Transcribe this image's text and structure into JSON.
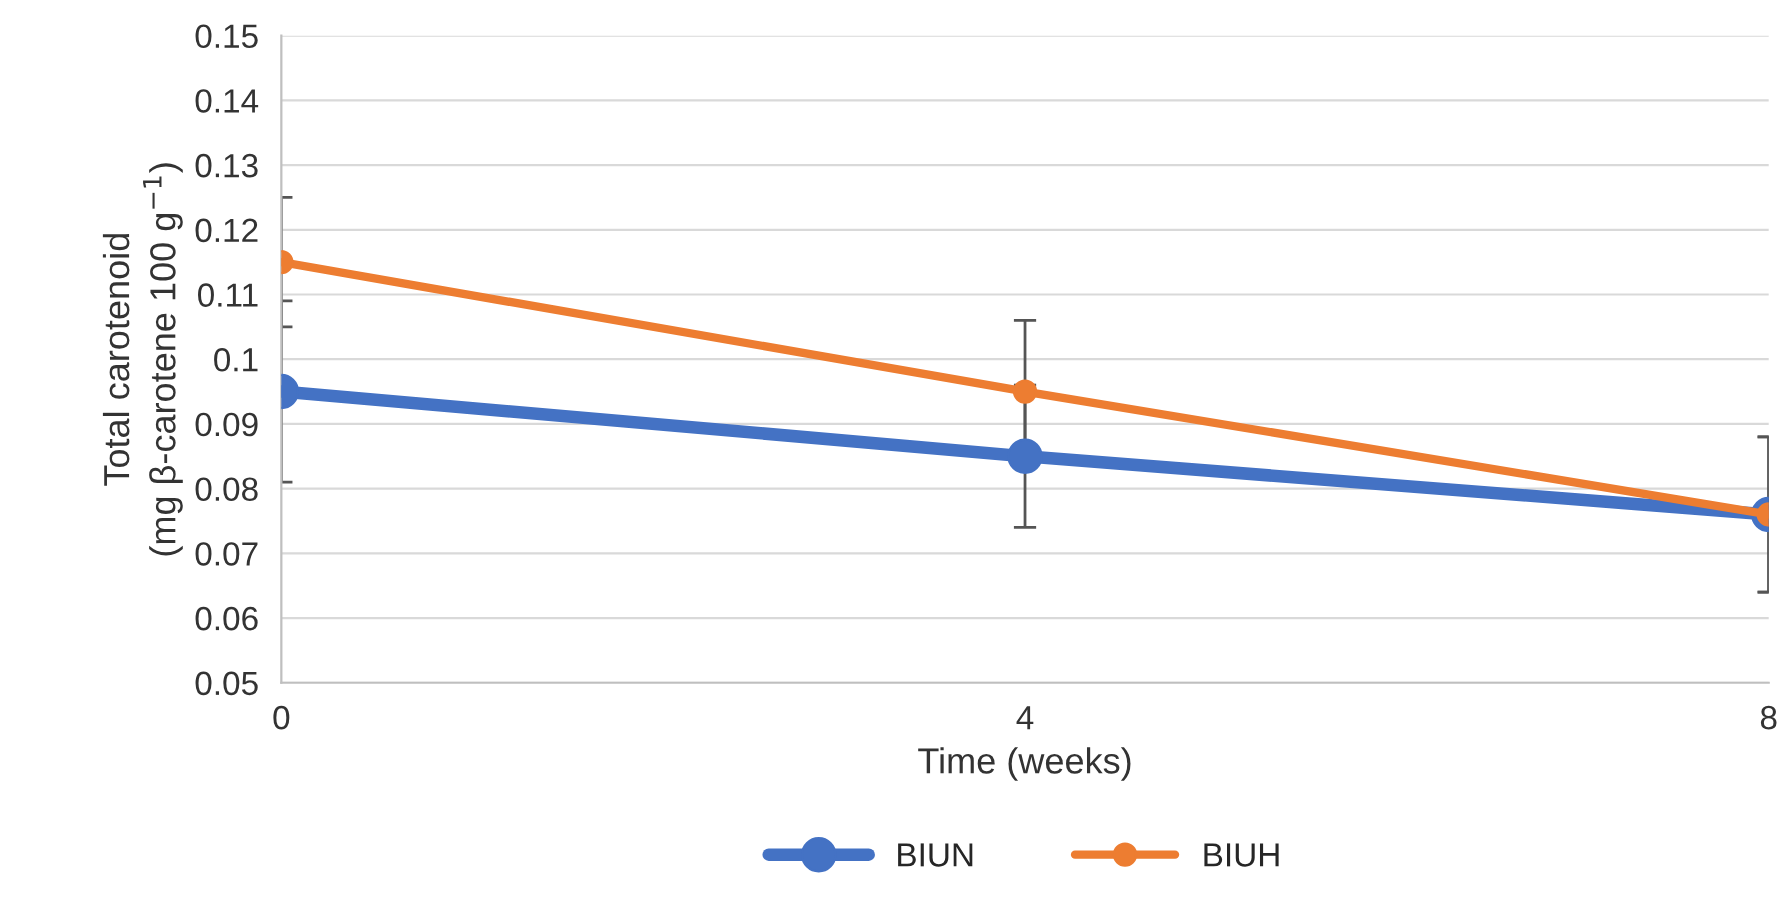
{
  "chart_data": {
    "type": "line",
    "xlabel": "Time (weeks)",
    "ylabel": "Total carotenoid\n(mg β-carotene 100 g$^{−1}$)",
    "x": [
      0,
      4,
      8
    ],
    "series": [
      {
        "name": "BIUN",
        "color": "#4472c4",
        "values": [
          0.095,
          0.085,
          0.076
        ],
        "errors": [
          0.014,
          0.011,
          0.012
        ]
      },
      {
        "name": "BIUH",
        "color": "#ed7d31",
        "values": [
          0.115,
          0.095,
          0.076
        ],
        "errors": [
          0.01,
          0.011,
          0.012
        ]
      }
    ],
    "xlim": [
      0,
      8
    ],
    "xticks": [
      0,
      4,
      8
    ],
    "ylim": [
      0.05,
      0.15
    ],
    "yticks": [
      {
        "value": 0.05,
        "label": "0.05"
      },
      {
        "value": 0.06,
        "label": "0.06"
      },
      {
        "value": 0.07,
        "label": "0.07"
      },
      {
        "value": 0.08,
        "label": "0.08"
      },
      {
        "value": 0.09,
        "label": "0.09"
      },
      {
        "value": 0.1,
        "label": "0.1"
      },
      {
        "value": 0.11,
        "label": "0.11"
      },
      {
        "value": 0.12,
        "label": "0.12"
      },
      {
        "value": 0.13,
        "label": "0.13"
      },
      {
        "value": 0.14,
        "label": "0.14"
      },
      {
        "value": 0.15,
        "label": "0.15"
      }
    ],
    "grid": "y",
    "legend": "bottom",
    "marker": "circle",
    "line_style": "solid"
  }
}
